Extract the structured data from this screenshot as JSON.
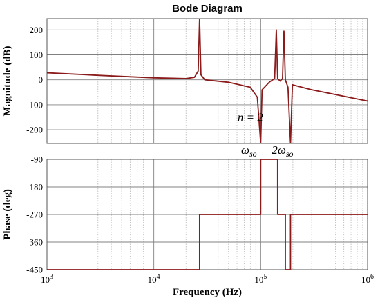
{
  "chart_data": {
    "type": "line",
    "title": "Bode Diagram",
    "xlabel": "Frequency  (Hz)",
    "x_scale": "log",
    "xlim": [
      1000,
      1000000
    ],
    "x_ticks": [
      {
        "base": "10",
        "exp": "3",
        "value": 1000
      },
      {
        "base": "10",
        "exp": "4",
        "value": 10000
      },
      {
        "base": "10",
        "exp": "5",
        "value": 100000
      },
      {
        "base": "10",
        "exp": "6",
        "value": 1000000
      }
    ],
    "grid": true,
    "line_color": "#8b1a1a",
    "subplots": [
      {
        "ylabel": "Magnitude (dB)",
        "ylim": [
          -255,
          245
        ],
        "yticks": [
          200,
          100,
          0,
          -100,
          -200
        ],
        "ytick_labels": [
          "200",
          "100",
          "0",
          "-100",
          "-200"
        ],
        "series": [
          {
            "points": [
              [
                1000,
                28
              ],
              [
                3000,
                18
              ],
              [
                10000,
                8
              ],
              [
                20000,
                5
              ],
              [
                24000,
                10
              ],
              [
                26000,
                35
              ],
              [
                26800,
                245
              ],
              [
                27600,
                20
              ],
              [
                30000,
                0
              ],
              [
                50000,
                -10
              ],
              [
                80000,
                -30
              ],
              [
                93000,
                -70
              ],
              [
                100000,
                -255
              ],
              [
                103000,
                -40
              ],
              [
                120000,
                -10
              ],
              [
                135000,
                5
              ],
              [
                140000,
                200
              ],
              [
                144000,
                5
              ],
              [
                152000,
                -5
              ],
              [
                160000,
                5
              ],
              [
                165000,
                195
              ],
              [
                170000,
                0
              ],
              [
                180000,
                -30
              ],
              [
                190000,
                -255
              ],
              [
                198000,
                -20
              ],
              [
                300000,
                -40
              ],
              [
                1000000,
                -85
              ]
            ]
          }
        ]
      },
      {
        "ylabel": "Phase (deg)",
        "ylim": [
          -450,
          -90
        ],
        "yticks": [
          -90,
          -180,
          -270,
          -360,
          -450
        ],
        "ytick_labels": [
          "-90",
          "-180",
          "-270",
          "-360",
          "-450"
        ],
        "series": [
          {
            "points": [
              [
                1000,
                -450
              ],
              [
                26800,
                -450
              ],
              [
                26800,
                -270
              ],
              [
                100000,
                -270
              ],
              [
                100000,
                -90
              ],
              [
                144000,
                -90
              ],
              [
                144000,
                -270
              ],
              [
                170000,
                -270
              ],
              [
                170000,
                -450
              ],
              [
                190000,
                -450
              ],
              [
                190000,
                -270
              ],
              [
                1000000,
                -270
              ]
            ]
          }
        ]
      }
    ],
    "annotations": [
      {
        "text": "n = 2",
        "x": 80000,
        "y": -165,
        "subplot": 0
      },
      {
        "base": "ω",
        "sub": "so",
        "x": 80000,
        "subplot": 0
      },
      {
        "base": "2ω",
        "sub": "so",
        "x": 165000,
        "subplot": 0
      }
    ]
  }
}
